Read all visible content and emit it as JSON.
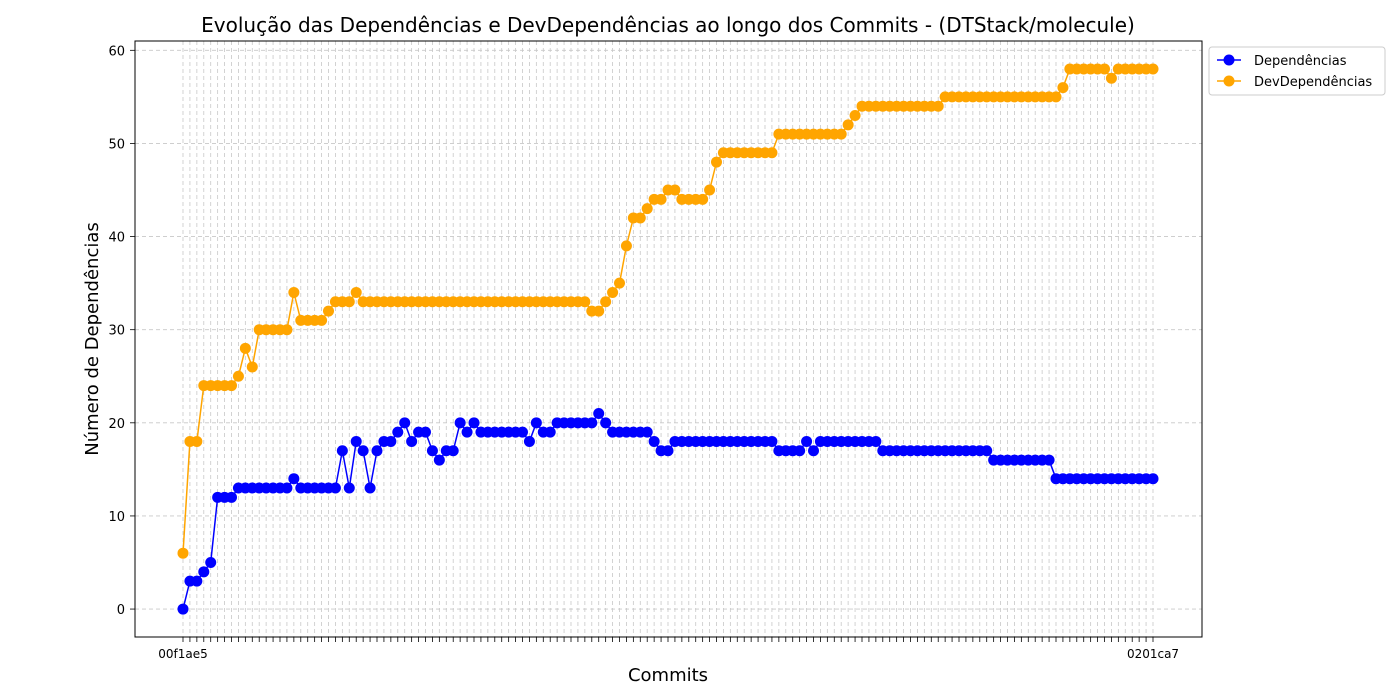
{
  "chart_data": {
    "type": "line",
    "title": "Evolução das Dependências e DevDependências ao longo dos Commits - (DTStack/molecule)",
    "xlabel": "Commits",
    "ylabel": "Número de Dependências",
    "ylim": [
      -3,
      61
    ],
    "yticks": [
      0,
      10,
      20,
      30,
      40,
      50,
      60
    ],
    "grid": true,
    "legend_position": "upper-right-outside",
    "x_tick_labels_visible": [
      "00f1ae5",
      "0201ca7"
    ],
    "series": [
      {
        "name": "Dependências",
        "color": "#0000ff",
        "values": [
          0,
          3,
          3,
          4,
          5,
          12,
          12,
          12,
          13,
          13,
          13,
          13,
          13,
          13,
          13,
          13,
          14,
          13,
          13,
          13,
          13,
          13,
          13,
          17,
          13,
          18,
          17,
          13,
          17,
          18,
          18,
          19,
          20,
          18,
          19,
          19,
          17,
          16,
          17,
          17,
          20,
          19,
          20,
          19,
          19,
          19,
          19,
          19,
          19,
          19,
          18,
          20,
          19,
          19,
          20,
          20,
          20,
          20,
          20,
          20,
          21,
          20,
          19,
          19,
          19,
          19,
          19,
          19,
          18,
          17,
          17,
          18,
          18,
          18,
          18,
          18,
          18,
          18,
          18,
          18,
          18,
          18,
          18,
          18,
          18,
          18,
          17,
          17,
          17,
          17,
          18,
          17,
          18,
          18,
          18,
          18,
          18,
          18,
          18,
          18,
          18,
          17,
          17,
          17,
          17,
          17,
          17,
          17,
          17,
          17,
          17,
          17,
          17,
          17,
          17,
          17,
          17,
          16,
          16,
          16,
          16,
          16,
          16,
          16,
          16,
          16,
          14,
          14,
          14,
          14,
          14,
          14,
          14,
          14,
          14,
          14,
          14,
          14,
          14,
          14,
          14
        ]
      },
      {
        "name": "DevDependências",
        "color": "#ffa500",
        "values": [
          6,
          18,
          18,
          24,
          24,
          24,
          24,
          24,
          25,
          28,
          26,
          30,
          30,
          30,
          30,
          30,
          34,
          31,
          31,
          31,
          31,
          32,
          33,
          33,
          33,
          34,
          33,
          33,
          33,
          33,
          33,
          33,
          33,
          33,
          33,
          33,
          33,
          33,
          33,
          33,
          33,
          33,
          33,
          33,
          33,
          33,
          33,
          33,
          33,
          33,
          33,
          33,
          33,
          33,
          33,
          33,
          33,
          33,
          33,
          32,
          32,
          33,
          34,
          35,
          39,
          42,
          42,
          43,
          44,
          44,
          45,
          45,
          44,
          44,
          44,
          44,
          45,
          48,
          49,
          49,
          49,
          49,
          49,
          49,
          49,
          49,
          51,
          51,
          51,
          51,
          51,
          51,
          51,
          51,
          51,
          51,
          52,
          53,
          54,
          54,
          54,
          54,
          54,
          54,
          54,
          54,
          54,
          54,
          54,
          54,
          55,
          55,
          55,
          55,
          55,
          55,
          55,
          55,
          55,
          55,
          55,
          55,
          55,
          55,
          55,
          55,
          55,
          56,
          58,
          58,
          58,
          58,
          58,
          58,
          57,
          58,
          58,
          58,
          58,
          58,
          58
        ]
      }
    ]
  }
}
